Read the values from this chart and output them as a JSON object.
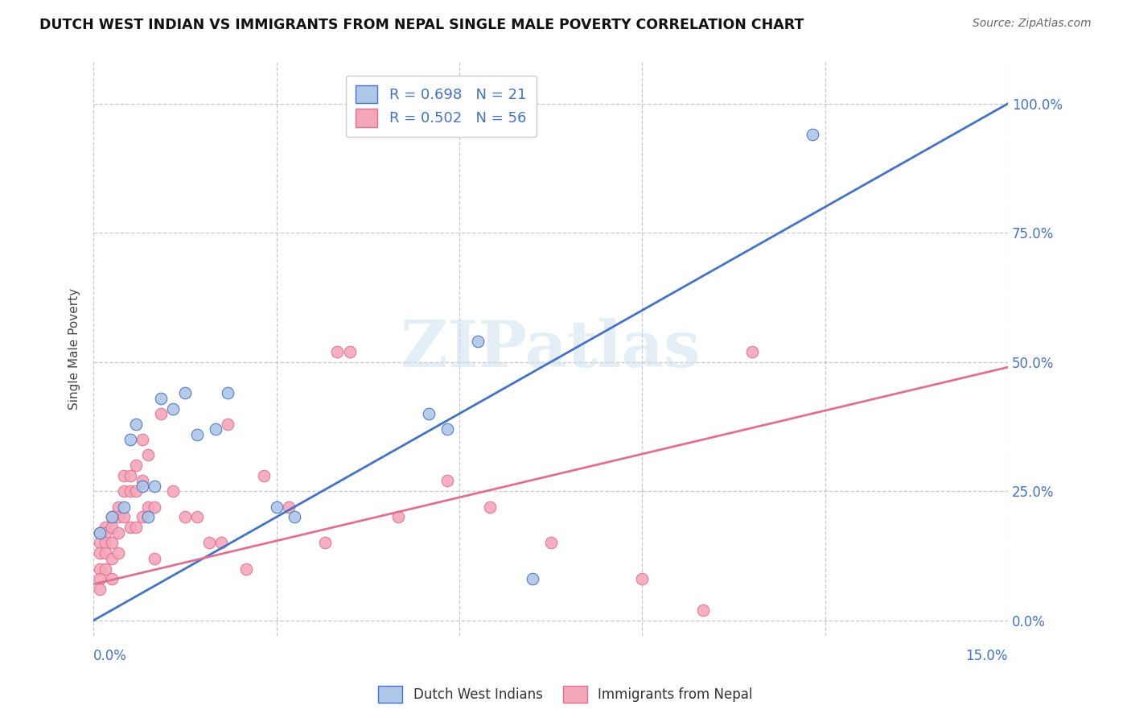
{
  "title": "DUTCH WEST INDIAN VS IMMIGRANTS FROM NEPAL SINGLE MALE POVERTY CORRELATION CHART",
  "source": "Source: ZipAtlas.com",
  "ylabel": "Single Male Poverty",
  "ytick_labels": [
    "0.0%",
    "25.0%",
    "50.0%",
    "75.0%",
    "100.0%"
  ],
  "ytick_values": [
    0.0,
    0.25,
    0.5,
    0.75,
    1.0
  ],
  "xmin": 0.0,
  "xmax": 0.15,
  "ymin": -0.03,
  "ymax": 1.08,
  "blue_R": 0.698,
  "blue_N": 21,
  "pink_R": 0.502,
  "pink_N": 56,
  "blue_color": "#aec6e8",
  "blue_line_color": "#4472c4",
  "pink_color": "#f4a7b9",
  "pink_line_color": "#e07090",
  "legend_label_blue": "Dutch West Indians",
  "legend_label_pink": "Immigrants from Nepal",
  "watermark": "ZIPatlas",
  "blue_line_x0": 0.0,
  "blue_line_y0": 0.0,
  "blue_line_x1": 0.15,
  "blue_line_y1": 1.0,
  "pink_line_x0": 0.0,
  "pink_line_y0": 0.07,
  "pink_line_x1": 0.15,
  "pink_line_y1": 0.49,
  "blue_scatter_x": [
    0.001,
    0.003,
    0.005,
    0.006,
    0.007,
    0.008,
    0.009,
    0.01,
    0.011,
    0.013,
    0.015,
    0.017,
    0.02,
    0.022,
    0.03,
    0.033,
    0.055,
    0.058,
    0.063,
    0.072,
    0.118
  ],
  "blue_scatter_y": [
    0.17,
    0.2,
    0.22,
    0.35,
    0.38,
    0.26,
    0.2,
    0.26,
    0.43,
    0.41,
    0.44,
    0.36,
    0.37,
    0.44,
    0.22,
    0.2,
    0.4,
    0.37,
    0.54,
    0.08,
    0.94
  ],
  "pink_scatter_x": [
    0.001,
    0.001,
    0.001,
    0.001,
    0.001,
    0.001,
    0.002,
    0.002,
    0.002,
    0.002,
    0.002,
    0.003,
    0.003,
    0.003,
    0.003,
    0.003,
    0.004,
    0.004,
    0.004,
    0.004,
    0.005,
    0.005,
    0.005,
    0.006,
    0.006,
    0.006,
    0.007,
    0.007,
    0.007,
    0.008,
    0.008,
    0.008,
    0.009,
    0.009,
    0.01,
    0.01,
    0.011,
    0.013,
    0.015,
    0.017,
    0.019,
    0.021,
    0.022,
    0.025,
    0.028,
    0.032,
    0.038,
    0.04,
    0.042,
    0.05,
    0.058,
    0.065,
    0.075,
    0.09,
    0.1,
    0.108
  ],
  "pink_scatter_y": [
    0.17,
    0.15,
    0.13,
    0.1,
    0.08,
    0.06,
    0.18,
    0.17,
    0.15,
    0.13,
    0.1,
    0.2,
    0.18,
    0.15,
    0.12,
    0.08,
    0.22,
    0.2,
    0.17,
    0.13,
    0.28,
    0.25,
    0.2,
    0.28,
    0.25,
    0.18,
    0.3,
    0.25,
    0.18,
    0.35,
    0.27,
    0.2,
    0.32,
    0.22,
    0.22,
    0.12,
    0.4,
    0.25,
    0.2,
    0.2,
    0.15,
    0.15,
    0.38,
    0.1,
    0.28,
    0.22,
    0.15,
    0.52,
    0.52,
    0.2,
    0.27,
    0.22,
    0.15,
    0.08,
    0.02,
    0.52
  ]
}
